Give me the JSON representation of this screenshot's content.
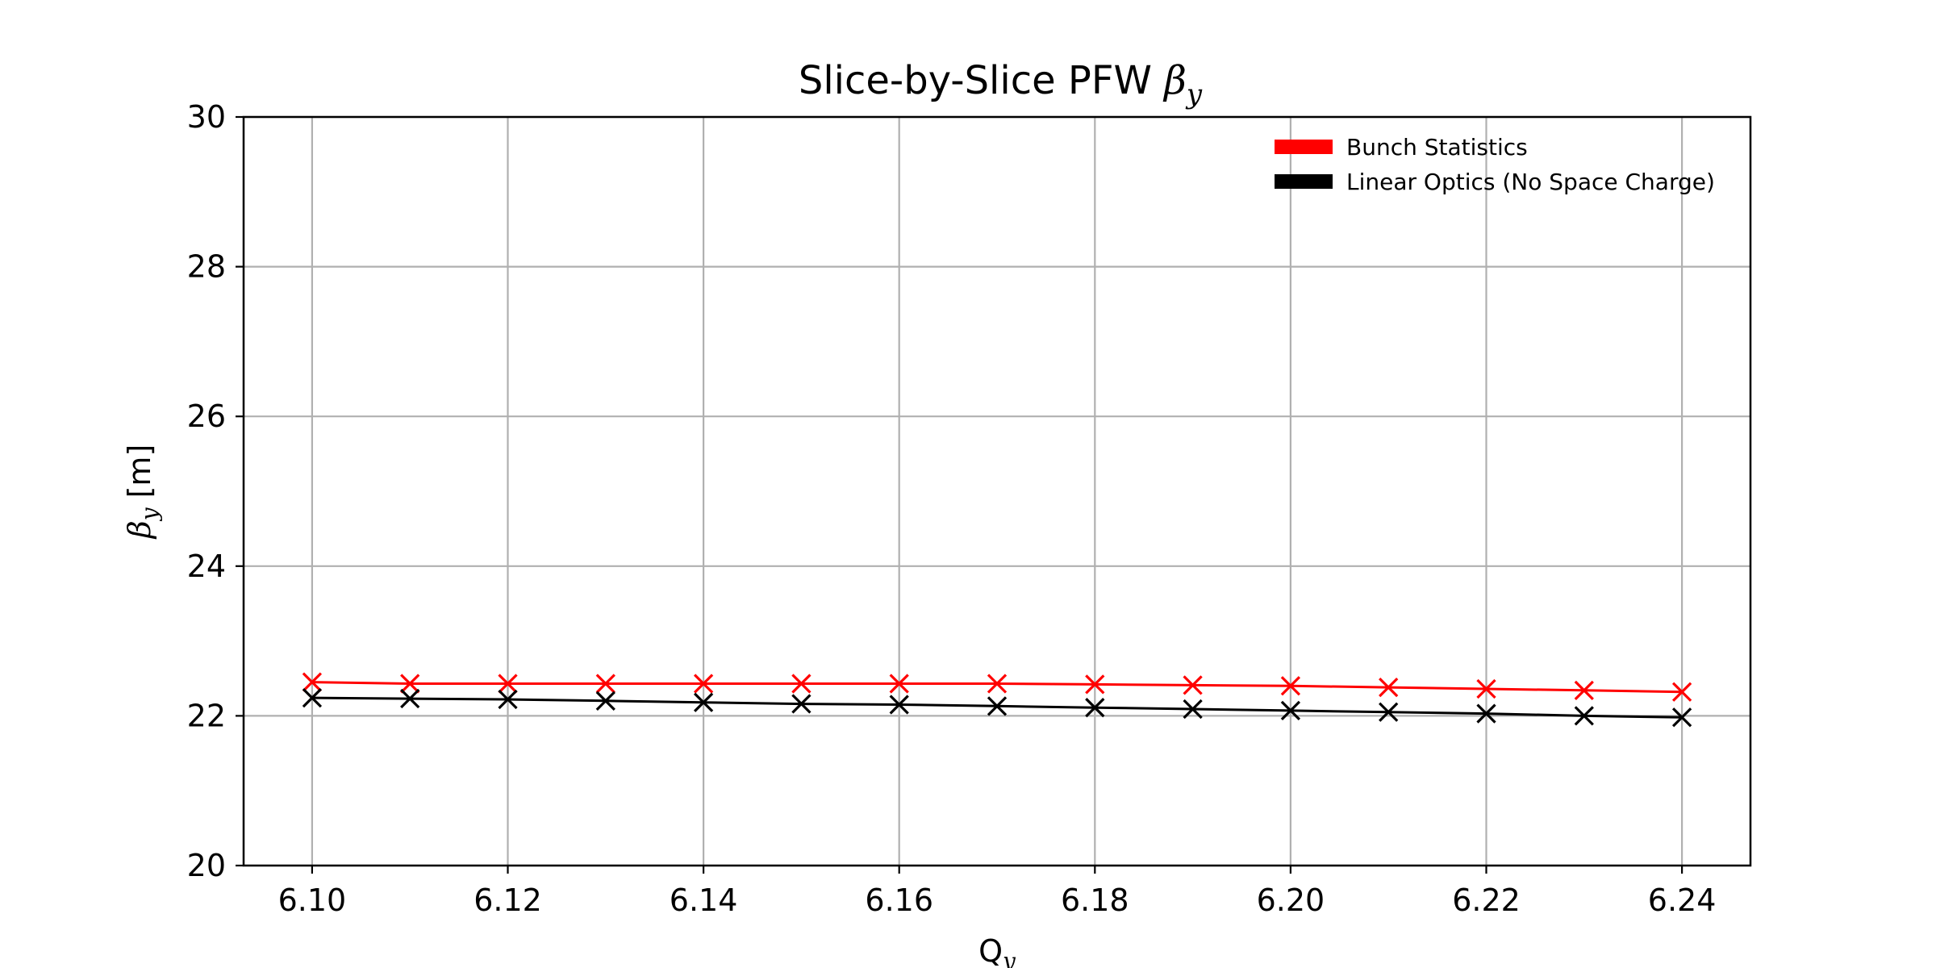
{
  "chart_data": {
    "type": "line",
    "title_prefix": "Slice-by-Slice PFW ",
    "title_symbol": "β",
    "title_subscript": "y",
    "xlabel_main": "Q",
    "xlabel_sub": "y",
    "ylabel_symbol": "β",
    "ylabel_sub": "y",
    "ylabel_unit": " [m]",
    "xlim": [
      6.093,
      6.247
    ],
    "ylim": [
      20,
      30
    ],
    "xticks": [
      6.1,
      6.12,
      6.14,
      6.16,
      6.18,
      6.2,
      6.22,
      6.24
    ],
    "xtick_labels": [
      "6.10",
      "6.12",
      "6.14",
      "6.16",
      "6.18",
      "6.20",
      "6.22",
      "6.24"
    ],
    "yticks": [
      20,
      22,
      24,
      26,
      28,
      30
    ],
    "ytick_labels": [
      "20",
      "22",
      "24",
      "26",
      "28",
      "30"
    ],
    "grid": true,
    "legend_position": "top-right",
    "x": [
      6.1,
      6.11,
      6.12,
      6.13,
      6.14,
      6.15,
      6.16,
      6.17,
      6.18,
      6.19,
      6.2,
      6.21,
      6.22,
      6.23,
      6.24
    ],
    "series": [
      {
        "name": "Bunch Statistics",
        "color": "#ff0000",
        "marker": "x",
        "values": [
          22.45,
          22.43,
          22.43,
          22.43,
          22.43,
          22.43,
          22.43,
          22.43,
          22.42,
          22.41,
          22.4,
          22.38,
          22.36,
          22.34,
          22.32
        ]
      },
      {
        "name": "Linear Optics (No Space Charge)",
        "color": "#000000",
        "marker": "x",
        "values": [
          22.24,
          22.23,
          22.22,
          22.2,
          22.18,
          22.16,
          22.15,
          22.13,
          22.11,
          22.09,
          22.07,
          22.05,
          22.03,
          22.0,
          21.98
        ]
      }
    ]
  }
}
